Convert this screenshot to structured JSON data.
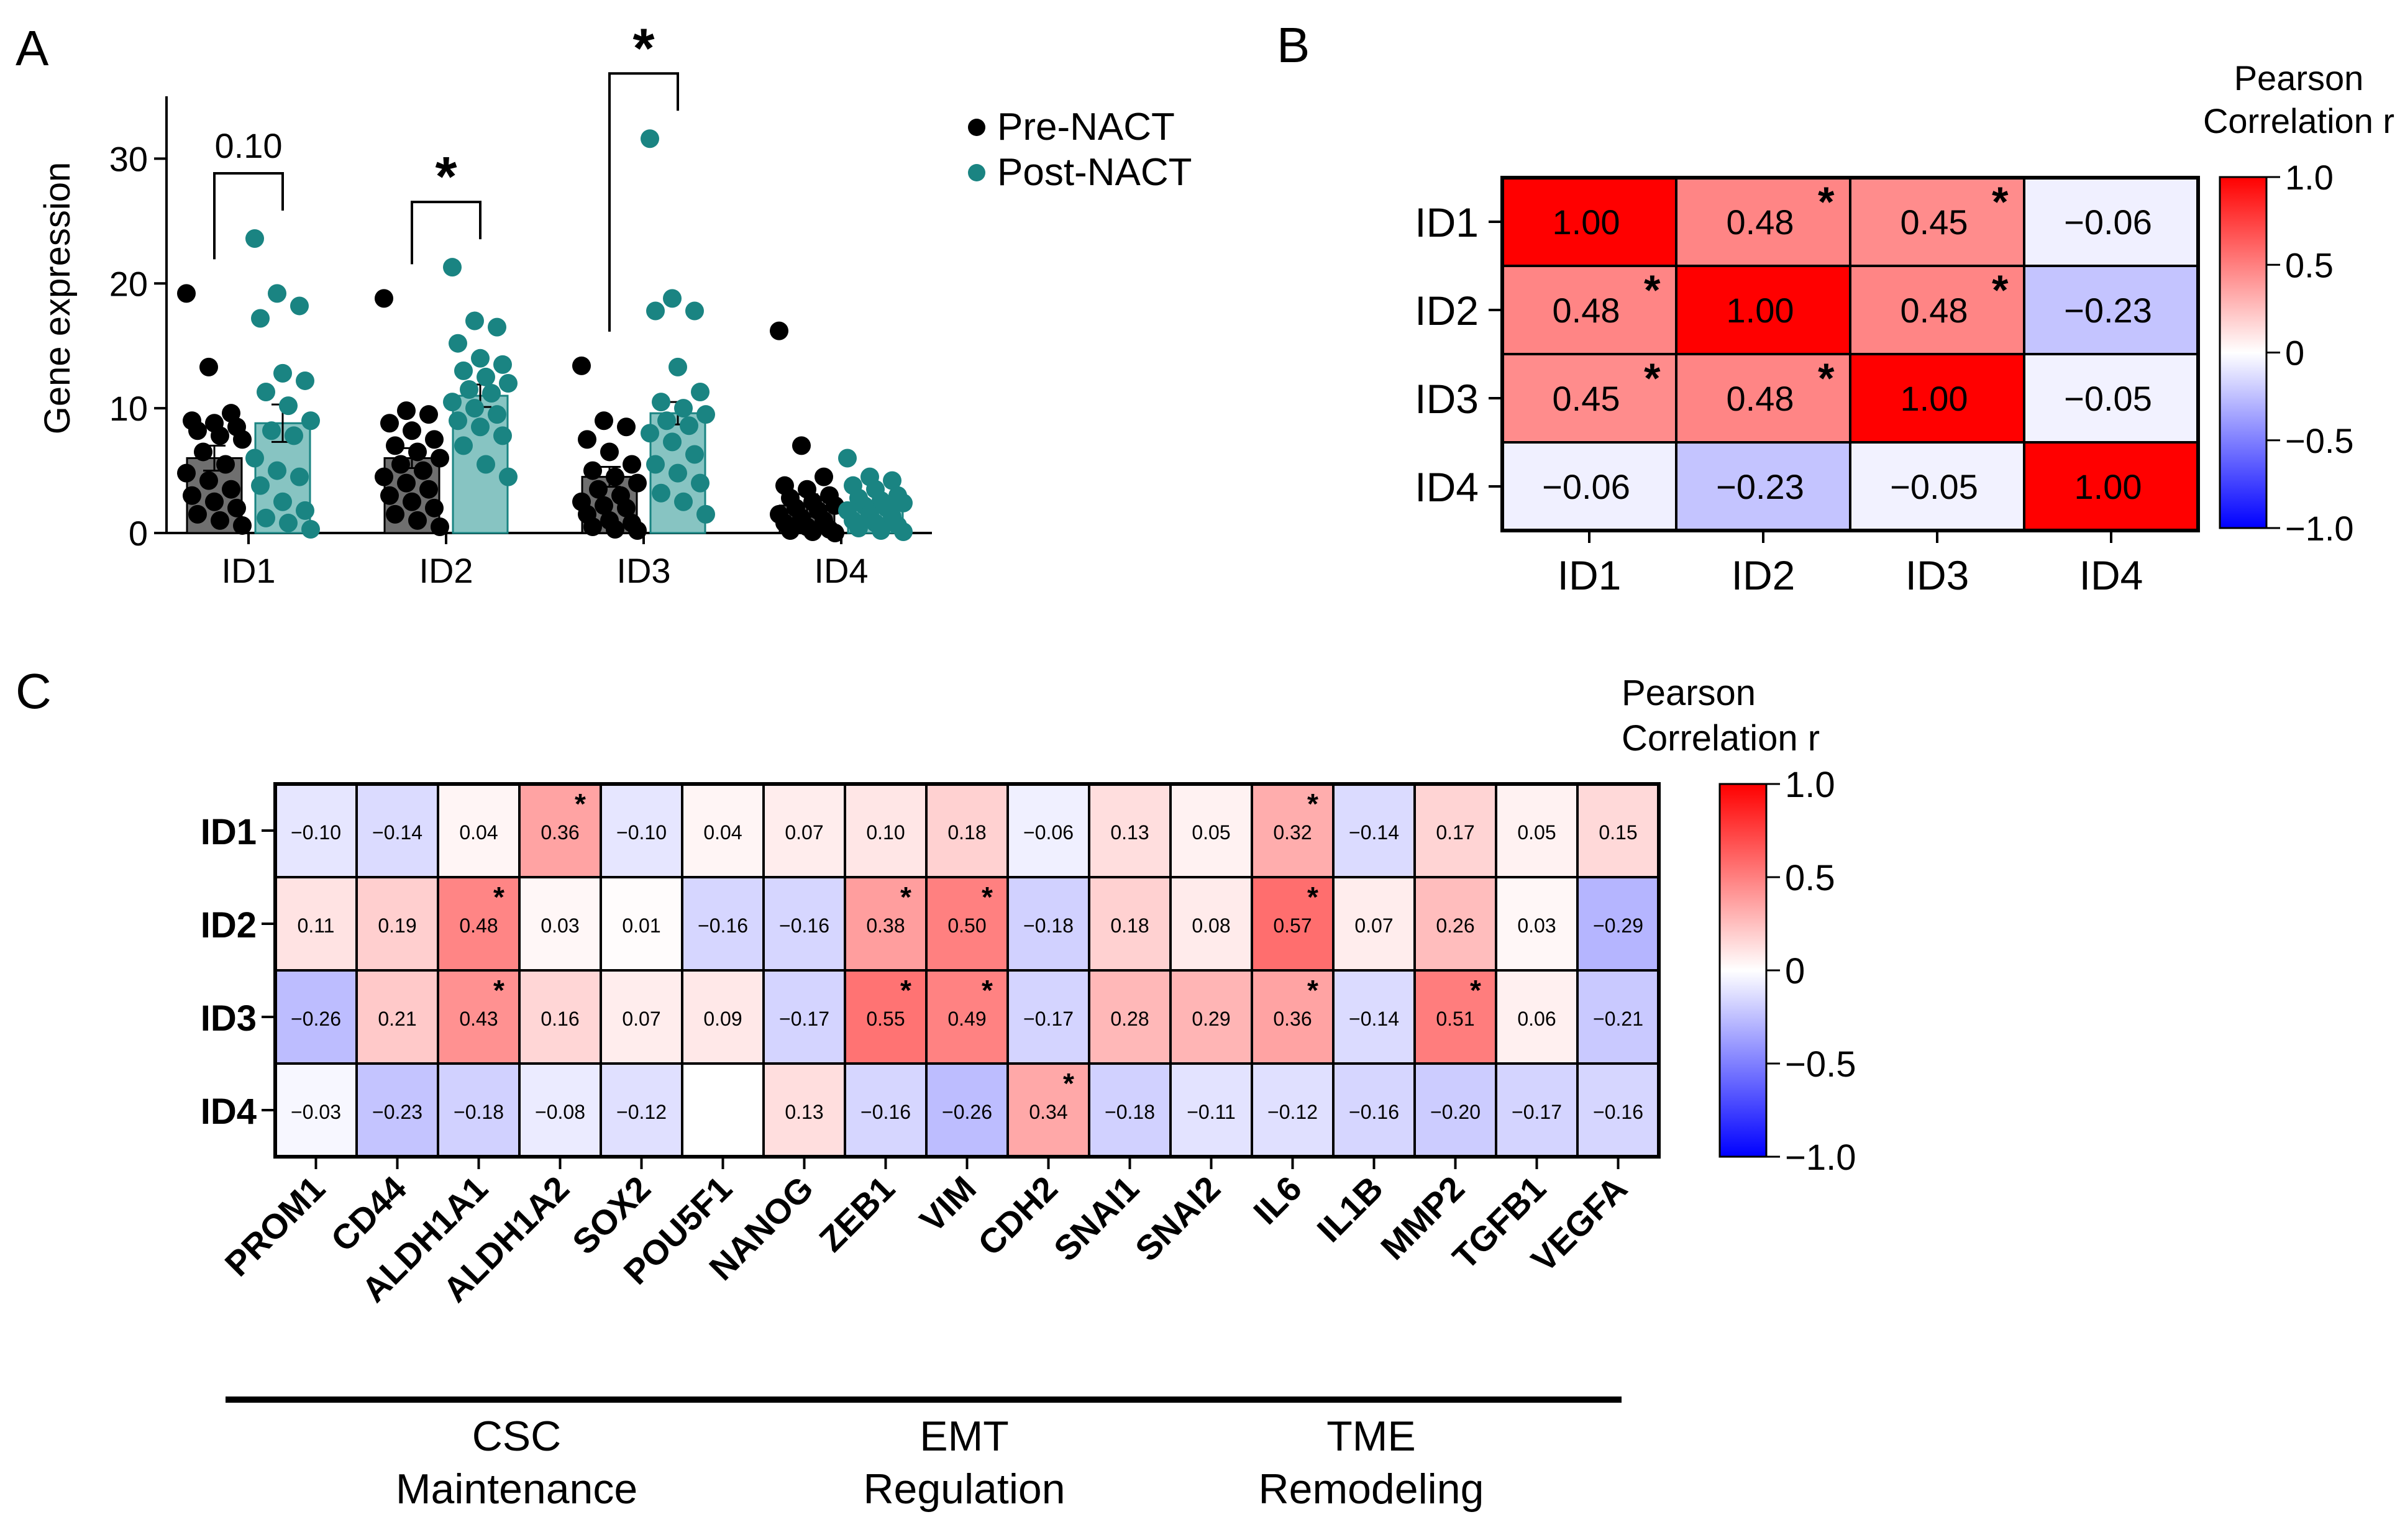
{
  "chart_data": [
    {
      "panel": "A",
      "type": "bar",
      "panel_label": "A",
      "ylabel": "Gene expression",
      "ylim": [
        0,
        35
      ],
      "yticks": [
        0,
        10,
        20,
        30
      ],
      "categories": [
        "ID1",
        "ID2",
        "ID3",
        "ID4"
      ],
      "legend": {
        "placement": "top-right",
        "entries": [
          "Pre-NACT",
          "Post-NACT"
        ]
      },
      "colors": {
        "pre_dot": "#000000",
        "pre_bar": "#6f6f6f",
        "post_dot": "#1a8482",
        "post_bar": "#87c4c2"
      },
      "series": [
        {
          "name": "Pre-NACT",
          "values": [
            6.0,
            6.0,
            4.5,
            2.2
          ],
          "errors": [
            1.0,
            0.8,
            0.8,
            0.9
          ],
          "points": [
            [
              19.2,
              13.3,
              9.6,
              9.0,
              8.8,
              8.5,
              8.2,
              7.8,
              7.5,
              6.5,
              5.5,
              4.8,
              4.2,
              3.5,
              3.0,
              2.5,
              2.0,
              1.5,
              1.0,
              0.6
            ],
            [
              18.8,
              9.8,
              9.5,
              8.8,
              8.2,
              7.5,
              7.0,
              6.5,
              6.0,
              5.5,
              5.0,
              4.5,
              4.0,
              3.5,
              3.0,
              2.5,
              2.0,
              1.5,
              1.0,
              0.5
            ],
            [
              13.4,
              9.0,
              8.5,
              7.5,
              6.5,
              5.5,
              5.0,
              4.5,
              4.0,
              3.5,
              3.0,
              2.5,
              2.2,
              2.0,
              1.5,
              1.0,
              0.8,
              0.5,
              0.3,
              0.2
            ],
            [
              16.2,
              7.0,
              4.5,
              3.8,
              3.5,
              3.0,
              2.8,
              2.5,
              2.2,
              2.0,
              1.8,
              1.5,
              1.2,
              1.0,
              0.8,
              0.5,
              0.3,
              0.2,
              0.1,
              0.0
            ]
          ]
        },
        {
          "name": "Post-NACT",
          "values": [
            8.8,
            11.0,
            9.6,
            2.1
          ],
          "errors": [
            1.5,
            0.9,
            0.9,
            0.4
          ],
          "points": [
            [
              23.6,
              19.2,
              18.2,
              17.2,
              12.8,
              12.2,
              11.3,
              10.2,
              9.0,
              8.2,
              7.8,
              6.0,
              5.0,
              4.5,
              3.8,
              2.5,
              1.8,
              1.2,
              0.8,
              0.3
            ],
            [
              21.3,
              17.0,
              16.5,
              15.2,
              14.0,
              13.5,
              13.0,
              12.5,
              12.0,
              11.5,
              11.2,
              10.5,
              10.0,
              9.5,
              9.0,
              8.5,
              7.8,
              7.0,
              5.5,
              4.5
            ],
            [
              31.6,
              18.8,
              17.8,
              17.8,
              13.3,
              11.3,
              10.5,
              10.0,
              9.5,
              9.0,
              8.6,
              8.0,
              7.3,
              6.3,
              5.5,
              4.8,
              4.0,
              3.2,
              2.5,
              1.5
            ],
            [
              6.0,
              4.5,
              4.2,
              3.8,
              3.5,
              3.0,
              2.8,
              2.6,
              2.4,
              2.2,
              2.0,
              1.8,
              1.5,
              1.3,
              1.0,
              0.8,
              0.6,
              0.4,
              0.2,
              0.1
            ]
          ]
        }
      ],
      "annotations": [
        {
          "category": "ID1",
          "text": "0.10"
        },
        {
          "category": "ID2",
          "text": "*"
        },
        {
          "category": "ID3",
          "text": "*"
        }
      ]
    },
    {
      "panel": "B",
      "type": "heatmap",
      "panel_label": "B",
      "rows": [
        "ID1",
        "ID2",
        "ID3",
        "ID4"
      ],
      "cols": [
        "ID1",
        "ID2",
        "ID3",
        "ID4"
      ],
      "values": [
        [
          1.0,
          0.48,
          0.45,
          -0.06
        ],
        [
          0.48,
          1.0,
          0.48,
          -0.23
        ],
        [
          0.45,
          0.48,
          1.0,
          -0.05
        ],
        [
          -0.06,
          -0.23,
          -0.05,
          1.0
        ]
      ],
      "labels": [
        [
          "1.00",
          "0.48",
          "0.45",
          "−0.06"
        ],
        [
          "0.48",
          "1.00",
          "0.48",
          "−0.23"
        ],
        [
          "0.45",
          "0.48",
          "1.00",
          "−0.05"
        ],
        [
          "−0.06",
          "−0.23",
          "−0.05",
          "1.00"
        ]
      ],
      "significant": [
        [
          false,
          true,
          true,
          false
        ],
        [
          true,
          false,
          true,
          false
        ],
        [
          true,
          true,
          false,
          false
        ],
        [
          false,
          false,
          false,
          false
        ]
      ],
      "colorbar": {
        "title_lines": [
          "Pearson",
          "Correlation r"
        ],
        "range": [
          -1,
          1
        ],
        "tick_values": [
          1,
          0.5,
          0,
          -0.5,
          -1
        ],
        "tick_labels": [
          "1.0",
          "0.5",
          "0",
          "−0.5",
          "−1.0"
        ]
      }
    },
    {
      "panel": "C",
      "type": "heatmap",
      "panel_label": "C",
      "rows": [
        "ID1",
        "ID2",
        "ID3",
        "ID4"
      ],
      "cols": [
        "PROM1",
        "CD44",
        "ALDH1A1",
        "ALDH1A2",
        "SOX2",
        "POU5F1",
        "NANOG",
        "ZEB1",
        "VIM",
        "CDH2",
        "SNAI1",
        "SNAI2",
        "IL6",
        "IL1B",
        "MMP2",
        "TGFB1",
        "VEGFA"
      ],
      "values": [
        [
          -0.1,
          -0.14,
          0.04,
          0.36,
          -0.1,
          0.04,
          0.07,
          0.1,
          0.18,
          -0.06,
          0.13,
          0.05,
          0.32,
          -0.14,
          0.17,
          0.05,
          0.15
        ],
        [
          0.11,
          0.19,
          0.48,
          0.03,
          0.01,
          -0.16,
          -0.16,
          0.38,
          0.5,
          -0.18,
          0.18,
          0.08,
          0.57,
          0.07,
          0.26,
          0.03,
          -0.29
        ],
        [
          -0.26,
          0.21,
          0.43,
          0.16,
          0.07,
          0.09,
          -0.17,
          0.55,
          0.49,
          -0.17,
          0.28,
          0.29,
          0.36,
          -0.14,
          0.51,
          0.06,
          -0.21
        ],
        [
          -0.03,
          -0.23,
          -0.18,
          -0.08,
          -0.12,
          null,
          0.13,
          -0.16,
          -0.26,
          0.34,
          -0.18,
          -0.11,
          -0.12,
          -0.16,
          -0.2,
          -0.17,
          -0.16
        ]
      ],
      "labels": [
        [
          "−0.10",
          "−0.14",
          "0.04",
          "0.36",
          "−0.10",
          "0.04",
          "0.07",
          "0.10",
          "0.18",
          "−0.06",
          "0.13",
          "0.05",
          "0.32",
          "−0.14",
          "0.17",
          "0.05",
          "0.15"
        ],
        [
          "0.11",
          "0.19",
          "0.48",
          "0.03",
          "0.01",
          "−0.16",
          "−0.16",
          "0.38",
          "0.50",
          "−0.18",
          "0.18",
          "0.08",
          "0.57",
          "0.07",
          "0.26",
          "0.03",
          "−0.29"
        ],
        [
          "−0.26",
          "0.21",
          "0.43",
          "0.16",
          "0.07",
          "0.09",
          "−0.17",
          "0.55",
          "0.49",
          "−0.17",
          "0.28",
          "0.29",
          "0.36",
          "−0.14",
          "0.51",
          "0.06",
          "−0.21"
        ],
        [
          "−0.03",
          "−0.23",
          "−0.18",
          "−0.08",
          "−0.12",
          "",
          "0.13",
          "−0.16",
          "−0.26",
          "0.34",
          "−0.18",
          "−0.11",
          "−0.12",
          "−0.16",
          "−0.20",
          "−0.17",
          "−0.16"
        ]
      ],
      "significant": [
        [
          false,
          false,
          false,
          true,
          false,
          false,
          false,
          false,
          false,
          false,
          false,
          false,
          true,
          false,
          false,
          false,
          false
        ],
        [
          false,
          false,
          true,
          false,
          false,
          false,
          false,
          true,
          true,
          false,
          false,
          false,
          true,
          false,
          false,
          false,
          false
        ],
        [
          false,
          false,
          true,
          false,
          false,
          false,
          false,
          true,
          true,
          false,
          false,
          false,
          true,
          false,
          true,
          false,
          false
        ],
        [
          false,
          false,
          false,
          false,
          false,
          false,
          false,
          false,
          false,
          true,
          false,
          false,
          false,
          false,
          false,
          false,
          false
        ]
      ],
      "groups": [
        {
          "lines": [
            "CSC",
            "Maintenance"
          ],
          "start": 0,
          "end": 6
        },
        {
          "lines": [
            "EMT",
            "Regulation"
          ],
          "start": 7,
          "end": 10
        },
        {
          "lines": [
            "TME",
            "Remodeling"
          ],
          "start": 11,
          "end": 16
        }
      ],
      "colorbar": {
        "title_lines": [
          "Pearson",
          "Correlation r"
        ],
        "range": [
          -1,
          1
        ],
        "tick_values": [
          1,
          0.5,
          0,
          -0.5,
          -1
        ],
        "tick_labels": [
          "1.0",
          "0.5",
          "0",
          "−0.5",
          "−1.0"
        ]
      }
    }
  ]
}
